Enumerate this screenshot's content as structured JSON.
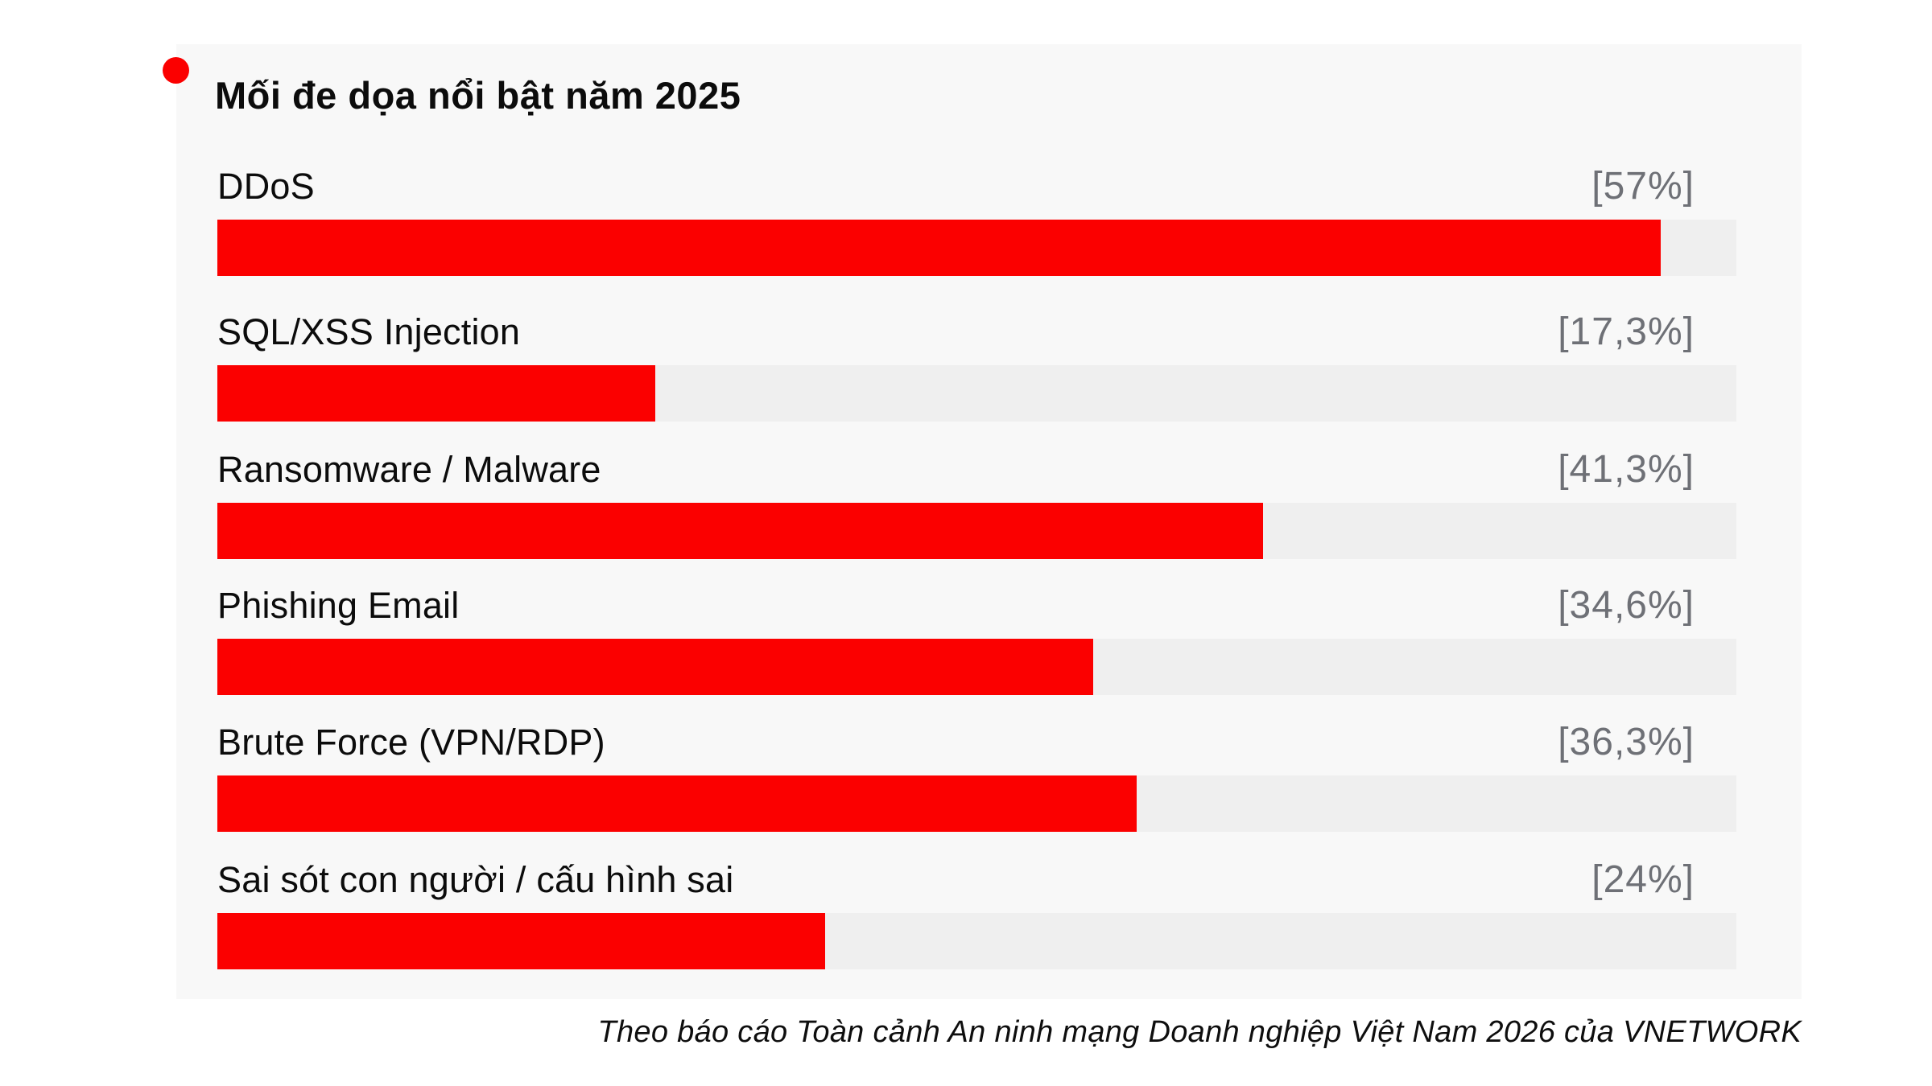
{
  "title": {
    "text": "Mối đe dọa nổi bật năm 2025",
    "bullet_color": "#fb0000"
  },
  "footer": {
    "source_text": "Theo báo cáo Toàn cảnh An ninh mạng Doanh nghiệp Việt Nam 2026 của VNETWORK"
  },
  "chart_data": {
    "type": "bar",
    "orientation": "horizontal",
    "title": "Mối đe dọa nổi bật năm 2025",
    "categories": [
      "DDoS",
      "SQL/XSS Injection",
      "Ransomware / Malware",
      "Phishing Email",
      "Brute Force (VPN/RDP)",
      "Sai sót con người / cấu hình sai"
    ],
    "values": [
      57,
      17.3,
      41.3,
      34.6,
      36.3,
      24
    ],
    "value_labels": [
      "[57%]",
      "[17,3%]",
      "[41,3%]",
      "[34,6%]",
      "[36,3%]",
      "[24%]"
    ],
    "unit": "%",
    "axis_min": 0,
    "axis_max": 60,
    "grid": false,
    "legend": false,
    "bar_color": "#fb0000",
    "track_color": "#efefef",
    "panel_color": "#f8f8f8",
    "label_color": "#0c0c0c",
    "value_text_color": "#6e7076"
  }
}
